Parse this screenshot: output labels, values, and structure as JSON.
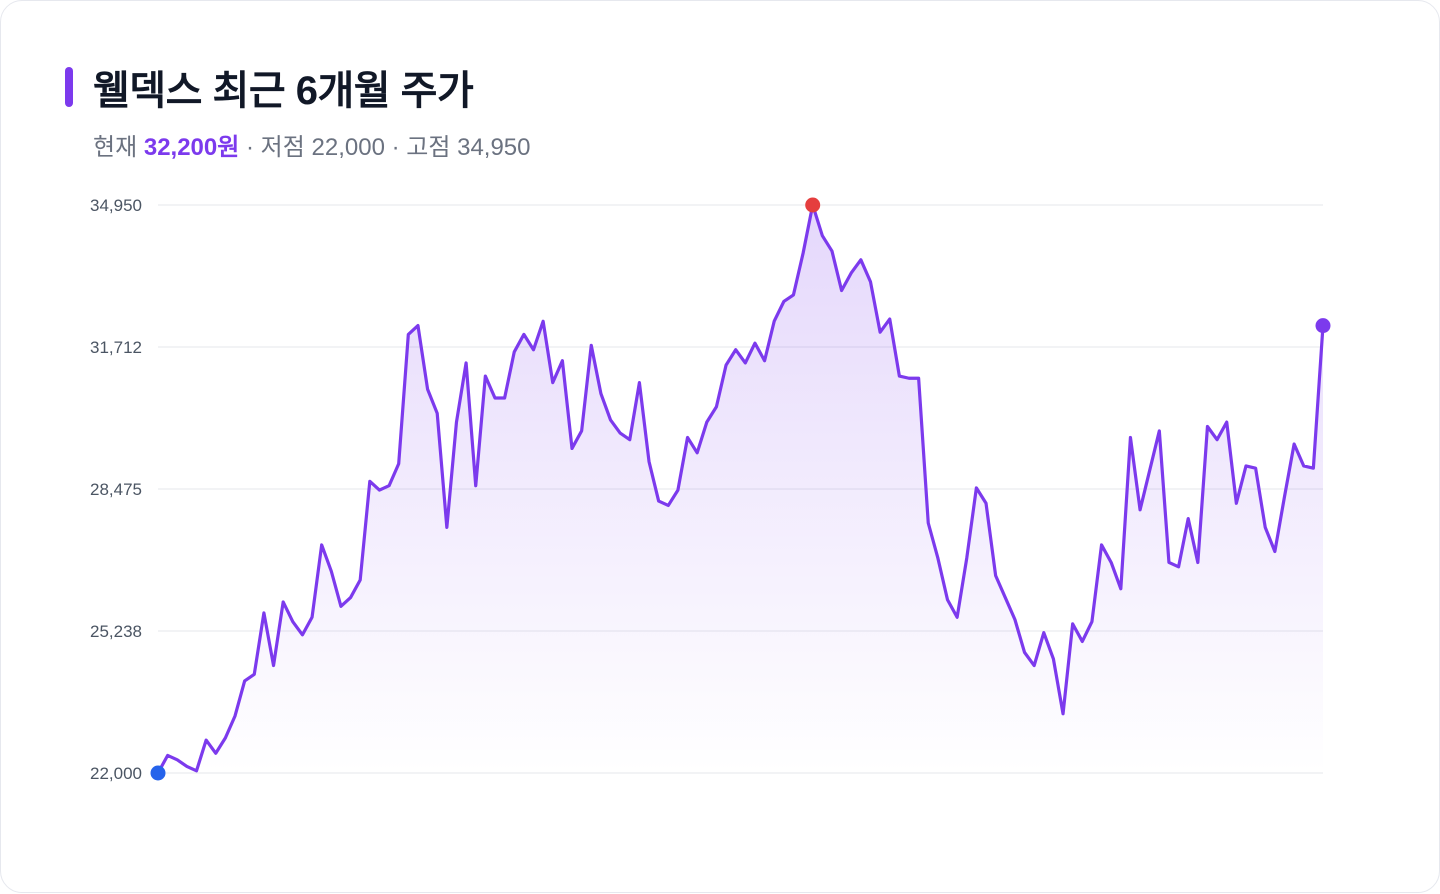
{
  "header": {
    "title": "웰덱스 최근 6개월 주가",
    "current_label": "현재",
    "current_value": "32,200원",
    "sep1": " · ",
    "low_label": "저점",
    "low_value": "22,000",
    "sep2": " · ",
    "high_label": "고점",
    "high_value": "34,950"
  },
  "colors": {
    "accent": "#7c3aed",
    "line": "#7c3aed",
    "start_marker": "#2563eb",
    "high_marker": "#e53e3e",
    "end_marker": "#7c3aed",
    "grid": "#e5e7eb"
  },
  "chart_data": {
    "type": "area",
    "title": "웰덱스 최근 6개월 주가",
    "xlabel": "",
    "ylabel": "",
    "ylim": [
      22000,
      34950
    ],
    "yticks": [
      22000,
      25238,
      28475,
      31712,
      34950
    ],
    "ytick_labels": [
      "22,000",
      "25,238",
      "28,475",
      "31,712",
      "34,950"
    ],
    "grid": true,
    "legend": "none",
    "markers": {
      "start": 22000,
      "high": 34950,
      "end": 32200
    },
    "series": [
      {
        "values": [
          22000,
          22400,
          22300,
          22150,
          22050,
          22750,
          22450,
          22800,
          23300,
          24100,
          24250,
          25650,
          24450,
          25900,
          25450,
          25150,
          25550,
          27200,
          26600,
          25800,
          26000,
          26400,
          28650,
          28450,
          28550,
          29050,
          32000,
          32200,
          30750,
          30200,
          27600,
          30000,
          31350,
          28550,
          31050,
          30550,
          30550,
          31600,
          32000,
          31650,
          32300,
          30900,
          31400,
          29400,
          29800,
          31750,
          30650,
          30050,
          29750,
          29600,
          30900,
          29100,
          28200,
          28100,
          28450,
          29650,
          29300,
          30000,
          30350,
          31300,
          31650,
          31350,
          31800,
          31400,
          32300,
          32750,
          32900,
          33850,
          34950,
          34250,
          33900,
          33000,
          33400,
          33700,
          33200,
          32050,
          32350,
          31050,
          31000,
          31000,
          27700,
          26900,
          25950,
          25550,
          26900,
          28500,
          28150,
          26500,
          26000,
          25500,
          24750,
          24450,
          25200,
          24600,
          23350,
          25400,
          25000,
          25450,
          27200,
          26800,
          26200,
          29650,
          28000,
          28900,
          29800,
          26800,
          26700,
          27800,
          26800,
          29900,
          29600,
          30000,
          28150,
          29000,
          28950,
          27600,
          27050,
          28300,
          29500,
          29000,
          28950,
          32200
        ]
      }
    ]
  }
}
